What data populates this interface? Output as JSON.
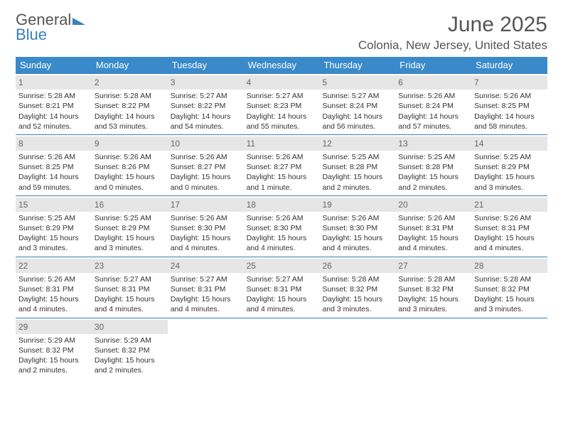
{
  "logo": {
    "text1": "General",
    "text2": "Blue"
  },
  "title": "June 2025",
  "location": "Colonia, New Jersey, United States",
  "colors": {
    "header_bg": "#3a8ac9",
    "header_text": "#ffffff",
    "daynum_bg": "#e6e6e6",
    "daynum_text": "#666666",
    "border": "#3a7fbf",
    "body_text": "#333333"
  },
  "weekdays": [
    "Sunday",
    "Monday",
    "Tuesday",
    "Wednesday",
    "Thursday",
    "Friday",
    "Saturday"
  ],
  "weeks": [
    [
      {
        "num": "1",
        "sunrise": "5:28 AM",
        "sunset": "8:21 PM",
        "daylight": "14 hours and 52 minutes."
      },
      {
        "num": "2",
        "sunrise": "5:28 AM",
        "sunset": "8:22 PM",
        "daylight": "14 hours and 53 minutes."
      },
      {
        "num": "3",
        "sunrise": "5:27 AM",
        "sunset": "8:22 PM",
        "daylight": "14 hours and 54 minutes."
      },
      {
        "num": "4",
        "sunrise": "5:27 AM",
        "sunset": "8:23 PM",
        "daylight": "14 hours and 55 minutes."
      },
      {
        "num": "5",
        "sunrise": "5:27 AM",
        "sunset": "8:24 PM",
        "daylight": "14 hours and 56 minutes."
      },
      {
        "num": "6",
        "sunrise": "5:26 AM",
        "sunset": "8:24 PM",
        "daylight": "14 hours and 57 minutes."
      },
      {
        "num": "7",
        "sunrise": "5:26 AM",
        "sunset": "8:25 PM",
        "daylight": "14 hours and 58 minutes."
      }
    ],
    [
      {
        "num": "8",
        "sunrise": "5:26 AM",
        "sunset": "8:25 PM",
        "daylight": "14 hours and 59 minutes."
      },
      {
        "num": "9",
        "sunrise": "5:26 AM",
        "sunset": "8:26 PM",
        "daylight": "15 hours and 0 minutes."
      },
      {
        "num": "10",
        "sunrise": "5:26 AM",
        "sunset": "8:27 PM",
        "daylight": "15 hours and 0 minutes."
      },
      {
        "num": "11",
        "sunrise": "5:26 AM",
        "sunset": "8:27 PM",
        "daylight": "15 hours and 1 minute."
      },
      {
        "num": "12",
        "sunrise": "5:25 AM",
        "sunset": "8:28 PM",
        "daylight": "15 hours and 2 minutes."
      },
      {
        "num": "13",
        "sunrise": "5:25 AM",
        "sunset": "8:28 PM",
        "daylight": "15 hours and 2 minutes."
      },
      {
        "num": "14",
        "sunrise": "5:25 AM",
        "sunset": "8:29 PM",
        "daylight": "15 hours and 3 minutes."
      }
    ],
    [
      {
        "num": "15",
        "sunrise": "5:25 AM",
        "sunset": "8:29 PM",
        "daylight": "15 hours and 3 minutes."
      },
      {
        "num": "16",
        "sunrise": "5:25 AM",
        "sunset": "8:29 PM",
        "daylight": "15 hours and 3 minutes."
      },
      {
        "num": "17",
        "sunrise": "5:26 AM",
        "sunset": "8:30 PM",
        "daylight": "15 hours and 4 minutes."
      },
      {
        "num": "18",
        "sunrise": "5:26 AM",
        "sunset": "8:30 PM",
        "daylight": "15 hours and 4 minutes."
      },
      {
        "num": "19",
        "sunrise": "5:26 AM",
        "sunset": "8:30 PM",
        "daylight": "15 hours and 4 minutes."
      },
      {
        "num": "20",
        "sunrise": "5:26 AM",
        "sunset": "8:31 PM",
        "daylight": "15 hours and 4 minutes."
      },
      {
        "num": "21",
        "sunrise": "5:26 AM",
        "sunset": "8:31 PM",
        "daylight": "15 hours and 4 minutes."
      }
    ],
    [
      {
        "num": "22",
        "sunrise": "5:26 AM",
        "sunset": "8:31 PM",
        "daylight": "15 hours and 4 minutes."
      },
      {
        "num": "23",
        "sunrise": "5:27 AM",
        "sunset": "8:31 PM",
        "daylight": "15 hours and 4 minutes."
      },
      {
        "num": "24",
        "sunrise": "5:27 AM",
        "sunset": "8:31 PM",
        "daylight": "15 hours and 4 minutes."
      },
      {
        "num": "25",
        "sunrise": "5:27 AM",
        "sunset": "8:31 PM",
        "daylight": "15 hours and 4 minutes."
      },
      {
        "num": "26",
        "sunrise": "5:28 AM",
        "sunset": "8:32 PM",
        "daylight": "15 hours and 3 minutes."
      },
      {
        "num": "27",
        "sunrise": "5:28 AM",
        "sunset": "8:32 PM",
        "daylight": "15 hours and 3 minutes."
      },
      {
        "num": "28",
        "sunrise": "5:28 AM",
        "sunset": "8:32 PM",
        "daylight": "15 hours and 3 minutes."
      }
    ],
    [
      {
        "num": "29",
        "sunrise": "5:29 AM",
        "sunset": "8:32 PM",
        "daylight": "15 hours and 2 minutes."
      },
      {
        "num": "30",
        "sunrise": "5:29 AM",
        "sunset": "8:32 PM",
        "daylight": "15 hours and 2 minutes."
      },
      {
        "empty": true
      },
      {
        "empty": true
      },
      {
        "empty": true
      },
      {
        "empty": true
      },
      {
        "empty": true
      }
    ]
  ]
}
